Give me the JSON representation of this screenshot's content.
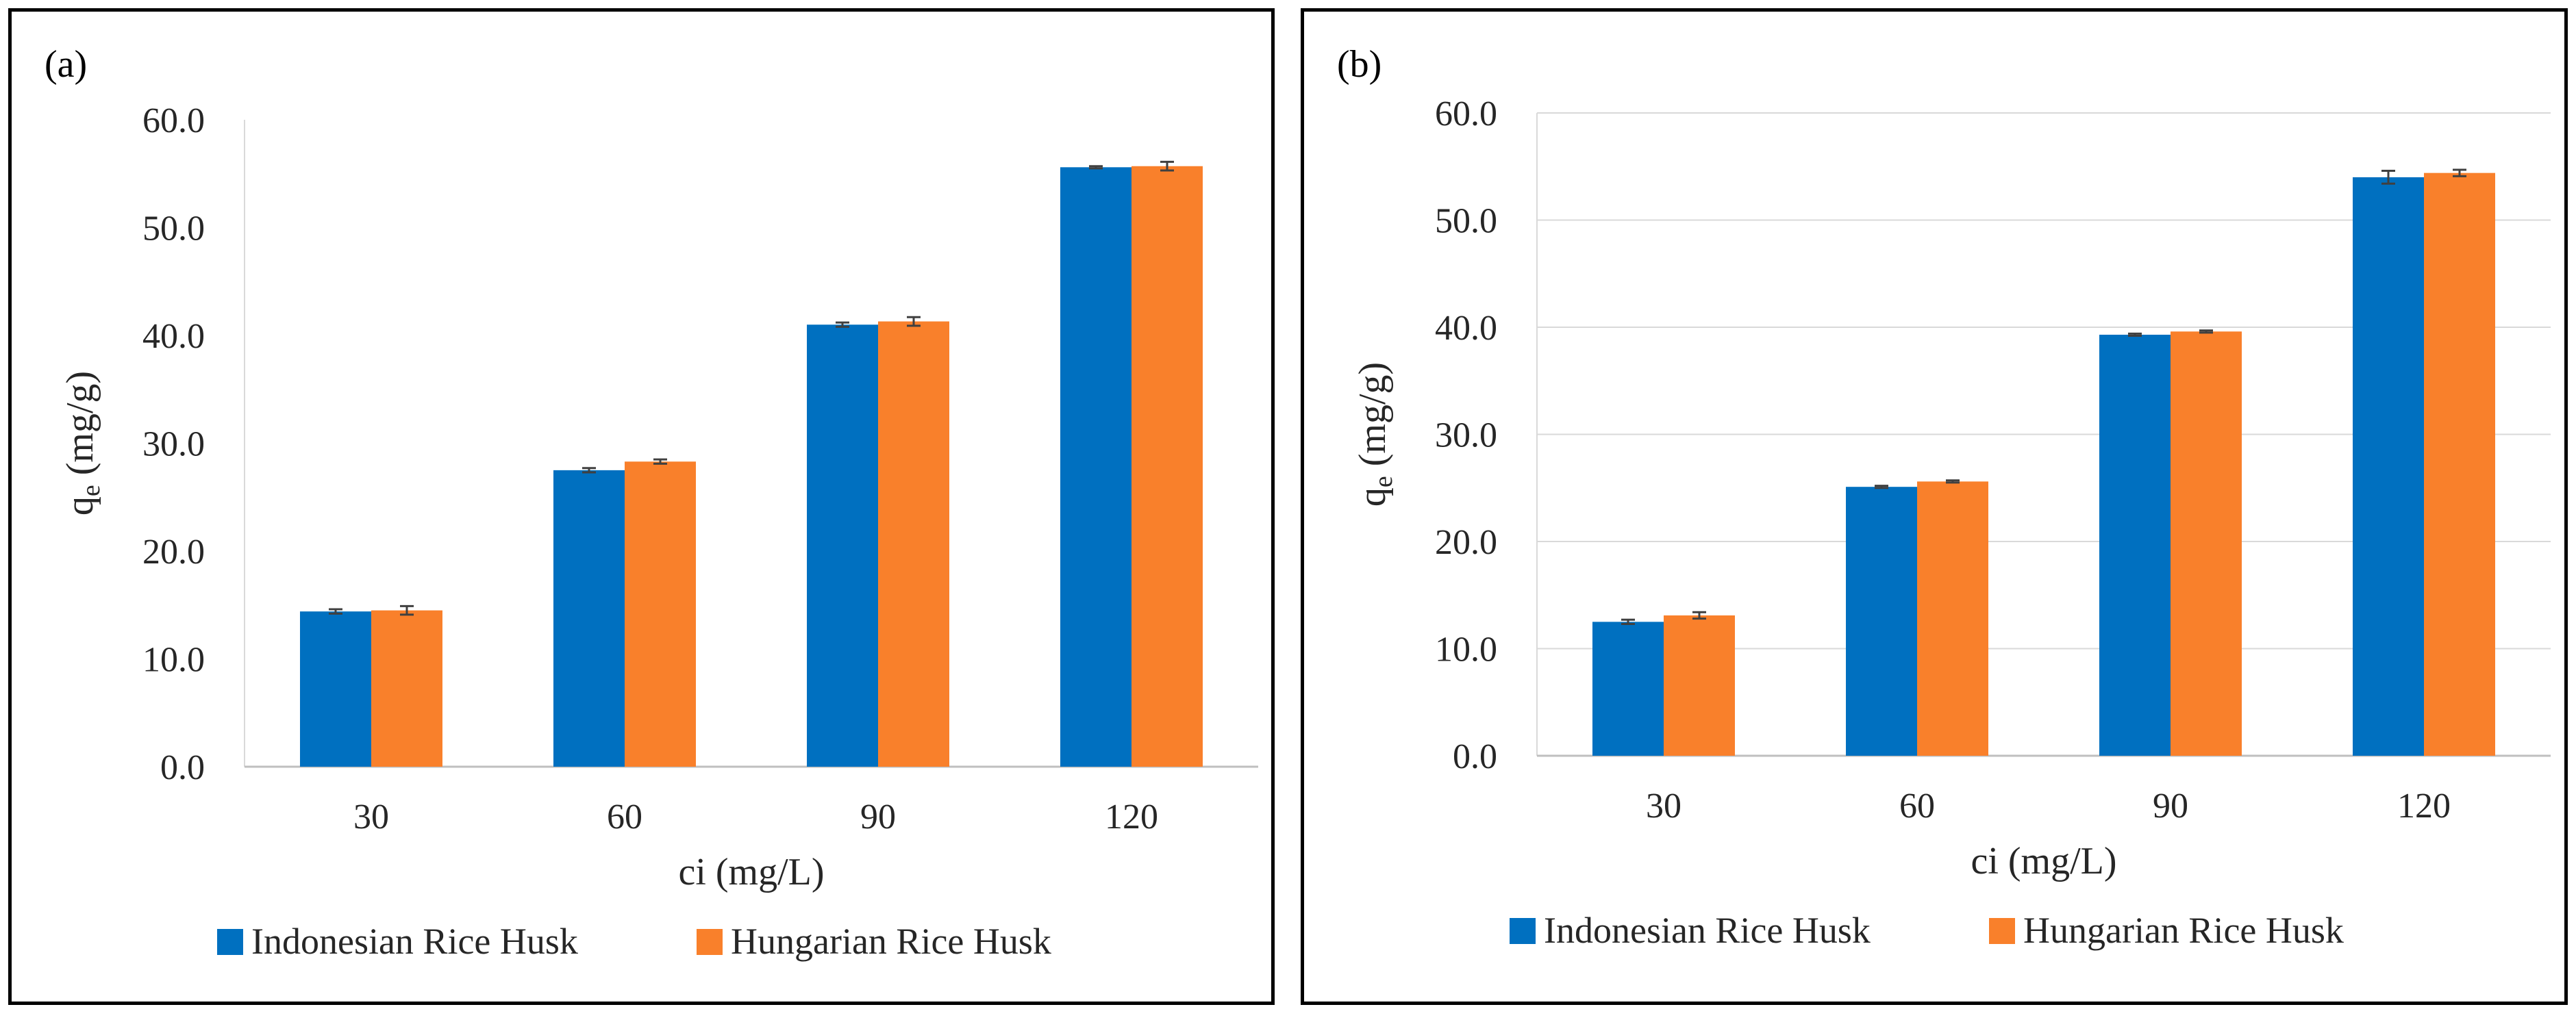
{
  "charts": [
    {
      "id": "a",
      "panel_label": "(a)",
      "chart_data": {
        "type": "bar",
        "categories": [
          "30",
          "60",
          "90",
          "120"
        ],
        "series": [
          {
            "name": "Indonesian Rice Husk",
            "color": "#0070C0",
            "values": [
              14.4,
              27.5,
              41.0,
              55.6
            ],
            "errors": [
              0.2,
              0.2,
              0.2,
              0.1
            ]
          },
          {
            "name": "Hungarian Rice Husk",
            "color": "#F9802B",
            "values": [
              14.5,
              28.3,
              41.3,
              55.7
            ],
            "errors": [
              0.4,
              0.2,
              0.4,
              0.4
            ]
          }
        ],
        "xlabel": "ci (mg/L)",
        "ylabel_main": "q",
        "ylabel_sub": "e",
        "ylabel_unit": " (mg/g)",
        "ylim": [
          0,
          60
        ],
        "yticks": [
          "0.0",
          "10.0",
          "20.0",
          "30.0",
          "40.0",
          "50.0",
          "60.0"
        ],
        "grid": false,
        "legend": "bottom"
      }
    },
    {
      "id": "b",
      "panel_label": "(b)",
      "chart_data": {
        "type": "bar",
        "categories": [
          "30",
          "60",
          "90",
          "120"
        ],
        "series": [
          {
            "name": "Indonesian Rice Husk",
            "color": "#0070C0",
            "values": [
              12.5,
              25.1,
              39.3,
              54.0
            ],
            "errors": [
              0.2,
              0.1,
              0.1,
              0.6
            ]
          },
          {
            "name": "Hungarian Rice Husk",
            "color": "#F9802B",
            "values": [
              13.1,
              25.6,
              39.6,
              54.4
            ],
            "errors": [
              0.3,
              0.1,
              0.1,
              0.3
            ]
          }
        ],
        "xlabel": "ci (mg/L)",
        "ylabel_main": "q",
        "ylabel_sub": "e",
        "ylabel_unit": " (mg/g)",
        "ylim": [
          0,
          60
        ],
        "yticks": [
          "0.0",
          "10.0",
          "20.0",
          "30.0",
          "40.0",
          "50.0",
          "60.0"
        ],
        "grid": true,
        "legend": "bottom"
      }
    }
  ]
}
